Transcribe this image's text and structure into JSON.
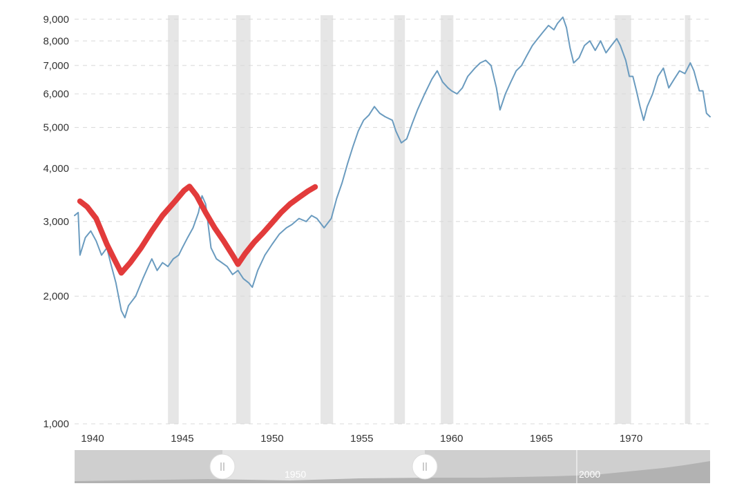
{
  "chart_data": {
    "type": "line",
    "title": "",
    "xlabel": "",
    "ylabel": "",
    "y_scale": "log",
    "ylim": [
      1000,
      9200
    ],
    "xlim": [
      1939.0,
      1973.3
    ],
    "y_ticks": [
      {
        "value": 1000,
        "label": "1,000"
      },
      {
        "value": 2000,
        "label": "2,000"
      },
      {
        "value": 3000,
        "label": "3,000"
      },
      {
        "value": 4000,
        "label": "4,000"
      },
      {
        "value": 5000,
        "label": "5,000"
      },
      {
        "value": 6000,
        "label": "6,000"
      },
      {
        "value": 7000,
        "label": "7,000"
      },
      {
        "value": 8000,
        "label": "8,000"
      },
      {
        "value": 9000,
        "label": "9,000"
      }
    ],
    "x_ticks": [
      {
        "value": 1940,
        "label": "1940"
      },
      {
        "value": 1945,
        "label": "1945"
      },
      {
        "value": 1950,
        "label": "1950"
      },
      {
        "value": 1955,
        "label": "1955"
      },
      {
        "value": 1960,
        "label": "1960"
      },
      {
        "value": 1965,
        "label": "1965"
      },
      {
        "value": 1970,
        "label": "1970"
      }
    ],
    "grid": "horizontal dashed",
    "recession_bands": [
      [
        1944.2,
        1944.8
      ],
      [
        1948.0,
        1948.8
      ],
      [
        1952.7,
        1953.4
      ],
      [
        1956.8,
        1957.4
      ],
      [
        1959.4,
        1960.1
      ],
      [
        1969.1,
        1970.0
      ],
      [
        1973.0,
        1973.3
      ]
    ],
    "series": [
      {
        "color": "#6a9bbf",
        "points": [
          [
            1939.0,
            3100
          ],
          [
            1939.2,
            3150
          ],
          [
            1939.3,
            2500
          ],
          [
            1939.6,
            2750
          ],
          [
            1939.9,
            2850
          ],
          [
            1940.2,
            2700
          ],
          [
            1940.5,
            2500
          ],
          [
            1940.8,
            2600
          ],
          [
            1941.0,
            2400
          ],
          [
            1941.3,
            2150
          ],
          [
            1941.6,
            1850
          ],
          [
            1941.8,
            1780
          ],
          [
            1942.0,
            1900
          ],
          [
            1942.4,
            2000
          ],
          [
            1942.8,
            2200
          ],
          [
            1943.1,
            2350
          ],
          [
            1943.3,
            2450
          ],
          [
            1943.6,
            2300
          ],
          [
            1943.9,
            2400
          ],
          [
            1944.2,
            2350
          ],
          [
            1944.5,
            2450
          ],
          [
            1944.8,
            2500
          ],
          [
            1945.0,
            2600
          ],
          [
            1945.3,
            2750
          ],
          [
            1945.6,
            2900
          ],
          [
            1945.9,
            3150
          ],
          [
            1946.1,
            3450
          ],
          [
            1946.3,
            3300
          ],
          [
            1946.6,
            2600
          ],
          [
            1946.9,
            2450
          ],
          [
            1947.2,
            2400
          ],
          [
            1947.5,
            2350
          ],
          [
            1947.8,
            2250
          ],
          [
            1948.1,
            2300
          ],
          [
            1948.4,
            2200
          ],
          [
            1948.7,
            2150
          ],
          [
            1948.9,
            2100
          ],
          [
            1949.2,
            2300
          ],
          [
            1949.6,
            2500
          ],
          [
            1950.0,
            2650
          ],
          [
            1950.4,
            2800
          ],
          [
            1950.8,
            2900
          ],
          [
            1951.1,
            2950
          ],
          [
            1951.5,
            3050
          ],
          [
            1951.9,
            3000
          ],
          [
            1952.2,
            3100
          ],
          [
            1952.5,
            3050
          ],
          [
            1952.9,
            2900
          ],
          [
            1953.3,
            3050
          ],
          [
            1953.6,
            3400
          ],
          [
            1953.9,
            3700
          ],
          [
            1954.2,
            4100
          ],
          [
            1954.5,
            4500
          ],
          [
            1954.8,
            4900
          ],
          [
            1955.1,
            5200
          ],
          [
            1955.4,
            5350
          ],
          [
            1955.7,
            5600
          ],
          [
            1956.0,
            5400
          ],
          [
            1956.3,
            5300
          ],
          [
            1956.7,
            5200
          ],
          [
            1956.9,
            4900
          ],
          [
            1957.2,
            4600
          ],
          [
            1957.5,
            4700
          ],
          [
            1957.8,
            5100
          ],
          [
            1958.1,
            5500
          ],
          [
            1958.5,
            6000
          ],
          [
            1958.9,
            6500
          ],
          [
            1959.2,
            6800
          ],
          [
            1959.5,
            6400
          ],
          [
            1959.8,
            6200
          ],
          [
            1960.0,
            6100
          ],
          [
            1960.3,
            6000
          ],
          [
            1960.6,
            6200
          ],
          [
            1960.9,
            6600
          ],
          [
            1961.3,
            6900
          ],
          [
            1961.6,
            7100
          ],
          [
            1961.9,
            7200
          ],
          [
            1962.2,
            7000
          ],
          [
            1962.5,
            6200
          ],
          [
            1962.7,
            5500
          ],
          [
            1963.0,
            6000
          ],
          [
            1963.3,
            6400
          ],
          [
            1963.6,
            6800
          ],
          [
            1963.9,
            7000
          ],
          [
            1964.2,
            7400
          ],
          [
            1964.5,
            7800
          ],
          [
            1964.8,
            8100
          ],
          [
            1965.1,
            8400
          ],
          [
            1965.4,
            8700
          ],
          [
            1965.7,
            8500
          ],
          [
            1965.9,
            8800
          ],
          [
            1966.2,
            9100
          ],
          [
            1966.4,
            8600
          ],
          [
            1966.6,
            7700
          ],
          [
            1966.8,
            7100
          ],
          [
            1967.1,
            7300
          ],
          [
            1967.4,
            7800
          ],
          [
            1967.7,
            8000
          ],
          [
            1968.0,
            7600
          ],
          [
            1968.3,
            8000
          ],
          [
            1968.6,
            7500
          ],
          [
            1968.9,
            7800
          ],
          [
            1969.2,
            8100
          ],
          [
            1969.4,
            7800
          ],
          [
            1969.7,
            7200
          ],
          [
            1969.9,
            6600
          ],
          [
            1970.1,
            6600
          ],
          [
            1970.3,
            6100
          ],
          [
            1970.5,
            5600
          ],
          [
            1970.7,
            5200
          ],
          [
            1970.9,
            5600
          ],
          [
            1971.2,
            6000
          ],
          [
            1971.5,
            6600
          ],
          [
            1971.8,
            6900
          ],
          [
            1972.1,
            6200
          ],
          [
            1972.4,
            6500
          ],
          [
            1972.7,
            6800
          ],
          [
            1973.0,
            6700
          ],
          [
            1973.3,
            7100
          ],
          [
            1973.5,
            6800
          ],
          [
            1973.8,
            6100
          ],
          [
            1974.0,
            6100
          ],
          [
            1974.2,
            5400
          ],
          [
            1974.4,
            5300
          ]
        ]
      },
      {
        "color": "#e23b3b",
        "points": [
          [
            1939.3,
            3350
          ],
          [
            1939.7,
            3250
          ],
          [
            1940.2,
            3050
          ],
          [
            1940.8,
            2650
          ],
          [
            1941.2,
            2450
          ],
          [
            1941.6,
            2270
          ],
          [
            1942.1,
            2400
          ],
          [
            1942.7,
            2600
          ],
          [
            1943.3,
            2850
          ],
          [
            1943.9,
            3100
          ],
          [
            1944.6,
            3350
          ],
          [
            1945.1,
            3550
          ],
          [
            1945.4,
            3630
          ],
          [
            1945.8,
            3450
          ],
          [
            1946.3,
            3150
          ],
          [
            1946.8,
            2900
          ],
          [
            1947.3,
            2700
          ],
          [
            1947.8,
            2500
          ],
          [
            1948.1,
            2380
          ],
          [
            1948.5,
            2520
          ],
          [
            1949.0,
            2680
          ],
          [
            1949.5,
            2820
          ],
          [
            1950.0,
            2980
          ],
          [
            1950.5,
            3150
          ],
          [
            1951.0,
            3300
          ],
          [
            1951.5,
            3420
          ],
          [
            1952.0,
            3540
          ],
          [
            1952.4,
            3620
          ]
        ]
      }
    ],
    "navigator": {
      "labels": [
        "1950",
        "2000"
      ]
    }
  }
}
